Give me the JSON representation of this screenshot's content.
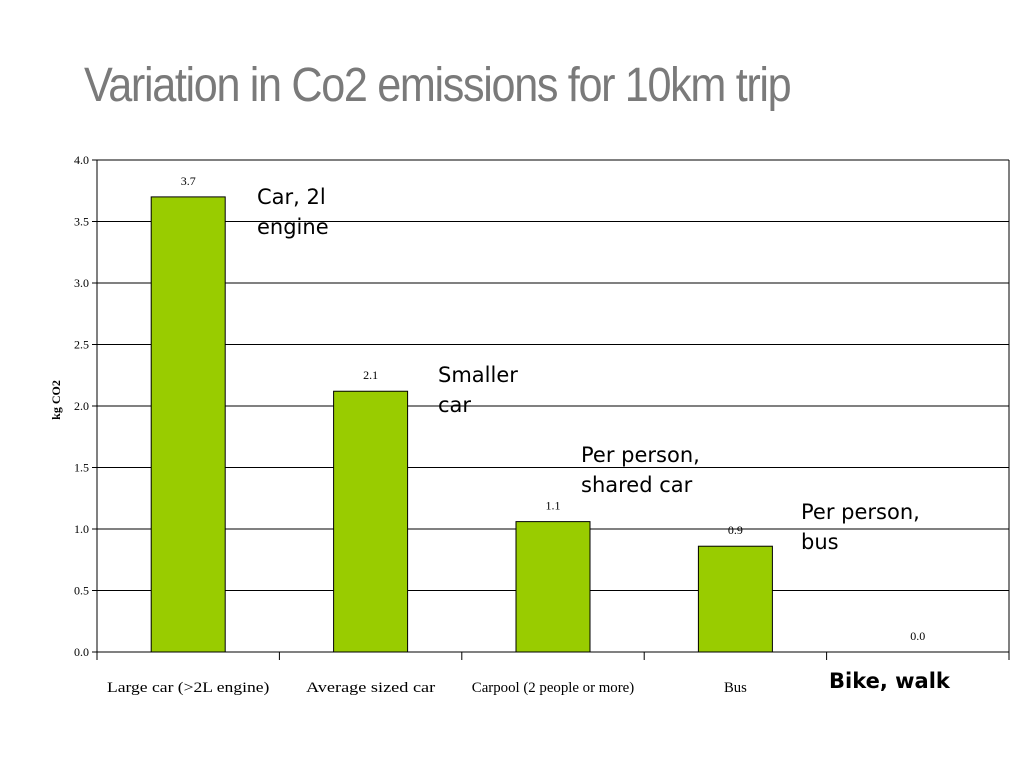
{
  "slide": {
    "title": "Variation in Co2 emissions for 10km trip"
  },
  "chart_data": {
    "type": "bar",
    "title": "",
    "xlabel": "",
    "ylabel": "kg CO2",
    "ylim": [
      0,
      4.0
    ],
    "yticks": [
      "0.0",
      "0.5",
      "1.0",
      "1.5",
      "2.0",
      "2.5",
      "3.0",
      "3.5",
      "4.0"
    ],
    "grid": true,
    "categories": [
      "Large car (>2L engine)",
      "Average sized car",
      "Carpool (2 people or more)",
      "Bus",
      ""
    ],
    "values": [
      3.7,
      2.12,
      1.06,
      0.86,
      0.0
    ],
    "data_labels": [
      "3.7",
      "2.1",
      "1.1",
      "0.9",
      "0.0"
    ],
    "bar_color": "#99cc00"
  },
  "annotations": [
    {
      "text": "Car, 2l\nengine",
      "bold": false
    },
    {
      "text": "Smaller\ncar",
      "bold": false
    },
    {
      "text": "Per person,\nshared car",
      "bold": false
    },
    {
      "text": "Per person,\nbus",
      "bold": false
    },
    {
      "text": "Bike, walk",
      "bold": true
    }
  ]
}
